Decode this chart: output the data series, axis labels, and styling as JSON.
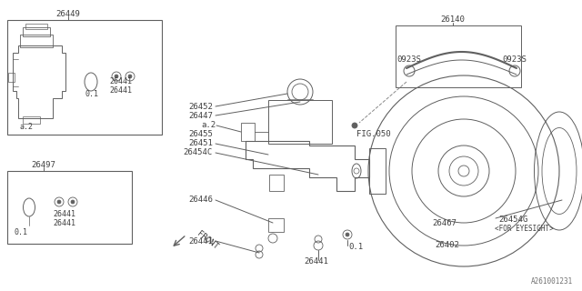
{
  "bg_color": "#ffffff",
  "lc": "#606060",
  "tc": "#404040",
  "fig_id": "A261001231",
  "figsize": [
    6.4,
    3.2
  ],
  "dpi": 100,
  "xlim": [
    0,
    640
  ],
  "ylim": [
    320,
    0
  ]
}
